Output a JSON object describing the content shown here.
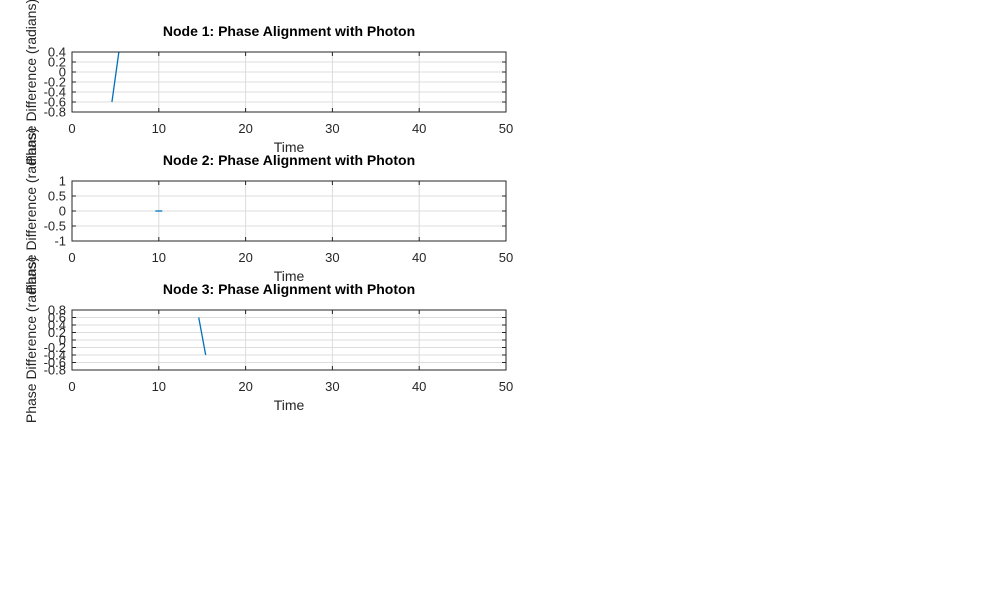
{
  "chart_data": [
    {
      "type": "line",
      "title": "Node 1: Phase Alignment with Photon",
      "xlabel": "Time",
      "ylabel": "Phase Difference (radians)",
      "xlim": [
        0,
        50
      ],
      "ylim": [
        -0.8,
        0.4
      ],
      "xticks": [
        0,
        10,
        20,
        30,
        40,
        50
      ],
      "xtick_labels": [
        "0",
        "10",
        "20",
        "30",
        "40",
        "50"
      ],
      "yticks": [
        -0.8,
        -0.6,
        -0.4,
        -0.2,
        0,
        0.2,
        0.4
      ],
      "ytick_labels": [
        "-0.8",
        "-0.6",
        "-0.4",
        "-0.2",
        "0",
        "0.2",
        "0.4"
      ],
      "grid": true,
      "series": [
        {
          "name": "Node 1",
          "color": "#0072bd",
          "x": [
            4.6,
            5.4
          ],
          "y": [
            -0.6,
            0.4
          ]
        }
      ]
    },
    {
      "type": "line",
      "title": "Node 2: Phase Alignment with Photon",
      "xlabel": "Time",
      "ylabel": "Phase Difference (radians)",
      "xlim": [
        0,
        50
      ],
      "ylim": [
        -1,
        1
      ],
      "xticks": [
        0,
        10,
        20,
        30,
        40,
        50
      ],
      "xtick_labels": [
        "0",
        "10",
        "20",
        "30",
        "40",
        "50"
      ],
      "yticks": [
        -1,
        -0.5,
        0,
        0.5,
        1
      ],
      "ytick_labels": [
        "-1",
        "-0.5",
        "0",
        "0.5",
        "1"
      ],
      "grid": true,
      "series": [
        {
          "name": "Node 2",
          "color": "#0072bd",
          "x": [
            9.6,
            10.4
          ],
          "y": [
            0,
            0
          ]
        }
      ]
    },
    {
      "type": "line",
      "title": "Node 3: Phase Alignment with Photon",
      "xlabel": "Time",
      "ylabel": "Phase Difference (radians)",
      "xlim": [
        0,
        50
      ],
      "ylim": [
        -0.8,
        0.8
      ],
      "xticks": [
        0,
        10,
        20,
        30,
        40,
        50
      ],
      "xtick_labels": [
        "0",
        "10",
        "20",
        "30",
        "40",
        "50"
      ],
      "yticks": [
        -0.8,
        -0.6,
        -0.4,
        -0.2,
        0,
        0.2,
        0.4,
        0.6,
        0.8
      ],
      "ytick_labels": [
        "-0.8",
        "-0.6",
        "-0.4",
        "-0.2",
        "0",
        "0.2",
        "0.4",
        "0.6",
        "0.8"
      ],
      "grid": true,
      "series": [
        {
          "name": "Node 3",
          "color": "#0072bd",
          "x": [
            14.6,
            15.4
          ],
          "y": [
            0.6,
            -0.4
          ]
        }
      ]
    }
  ]
}
